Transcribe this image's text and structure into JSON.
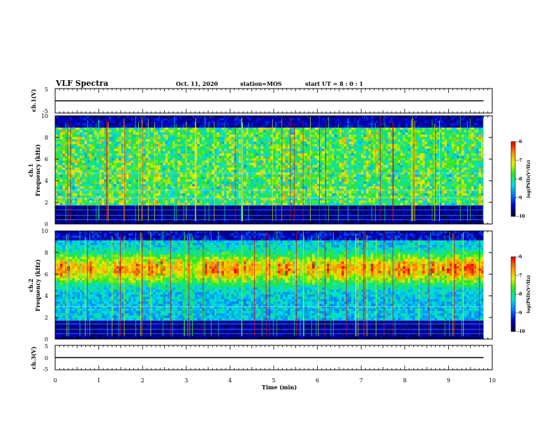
{
  "header": {
    "title": "VLF Spectra",
    "date": "Oct. 11, 2020",
    "station": "station=MOS",
    "start": "start UT =  8 : 0 : 1"
  },
  "chart_data": [
    {
      "type": "line",
      "panel": "ch1-waveform",
      "ylabel": "ch.1(V)",
      "ylim": [
        -5,
        5
      ],
      "yticks": [
        "5",
        "-5"
      ],
      "x": [
        0,
        9.8
      ],
      "y": [
        0,
        0
      ]
    },
    {
      "type": "heatmap",
      "panel": "ch1-spectrogram",
      "ylabel": "ch.1\nFrequency (kHz)",
      "ylim": [
        0,
        10
      ],
      "yticks": [
        "0",
        "2",
        "4",
        "6",
        "8",
        "10"
      ],
      "xlim": [
        0,
        10
      ],
      "data_xmax": 9.8,
      "pattern": "broadband"
    },
    {
      "type": "heatmap",
      "panel": "ch2-spectrogram",
      "ylabel": "ch.2\nFrequency (kHz)",
      "ylim": [
        0,
        10
      ],
      "yticks": [
        "0",
        "2",
        "4",
        "6",
        "8",
        "10"
      ],
      "xlim": [
        0,
        10
      ],
      "data_xmax": 9.8,
      "pattern": "banded"
    },
    {
      "type": "line",
      "panel": "ch3-waveform",
      "ylabel": "ch.3(V)",
      "ylim": [
        -5,
        5
      ],
      "yticks": [
        "5",
        "0",
        "-5"
      ],
      "x": [
        0,
        9.8
      ],
      "y": [
        0,
        0
      ]
    }
  ],
  "xaxis": {
    "label": "Time (min)",
    "ticks": [
      "0",
      "1",
      "2",
      "3",
      "4",
      "5",
      "6",
      "7",
      "8",
      "9",
      "10"
    ],
    "range": [
      0,
      10
    ]
  },
  "colorbar": {
    "label": "log(PSD)(V²/Hz)",
    "ticks": [
      "-6",
      "-7",
      "-8",
      "-9",
      "-10"
    ],
    "range": [
      -10,
      -6
    ]
  },
  "colors": {
    "ink": "#000000",
    "cmap": [
      "#000033",
      "#0000c8",
      "#0078ff",
      "#00e0e0",
      "#28e628",
      "#e6f000",
      "#ff8c00",
      "#e60000",
      "#ffffff"
    ]
  }
}
